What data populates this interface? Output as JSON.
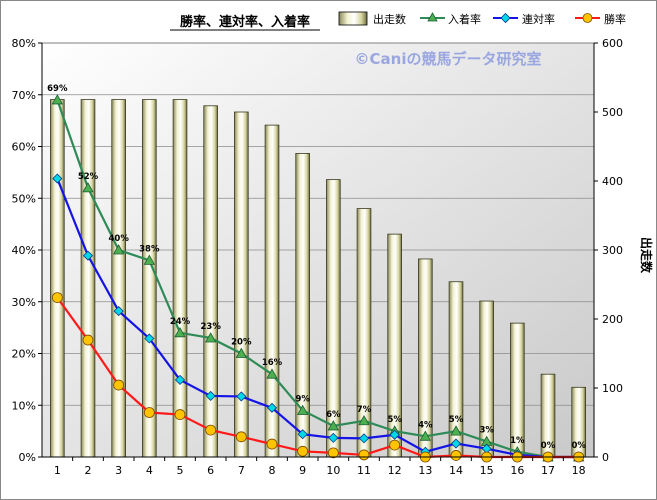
{
  "chart_data": {
    "type": "bar+line",
    "title": "勝率、連対率、入着率",
    "watermark": "©Caniの競馬データ研究室",
    "categories": [
      "1",
      "2",
      "3",
      "4",
      "5",
      "6",
      "7",
      "8",
      "9",
      "10",
      "11",
      "12",
      "13",
      "14",
      "15",
      "16",
      "17",
      "18"
    ],
    "y_left": {
      "min": 0,
      "max": 80,
      "step": 10,
      "unit": "%",
      "tick_labels": [
        "0%",
        "10%",
        "20%",
        "30%",
        "40%",
        "50%",
        "60%",
        "70%",
        "80%"
      ]
    },
    "y_right": {
      "min": 0,
      "max": 600,
      "step": 100,
      "label": "出走数",
      "tick_labels": [
        "0",
        "100",
        "200",
        "300",
        "400",
        "500",
        "600"
      ]
    },
    "grid": true,
    "legend_position": "top-right",
    "series": [
      {
        "name": "出走数",
        "kind": "bar",
        "axis": "right",
        "color": "#e8e6b0",
        "values": [
          518,
          518,
          518,
          518,
          518,
          509,
          500,
          481,
          440,
          402,
          360,
          323,
          287,
          254,
          226,
          194,
          120,
          101
        ]
      },
      {
        "name": "入着率",
        "kind": "line",
        "axis": "left",
        "color": "#2e8b57",
        "marker_fill": "#4caf50",
        "values": [
          69,
          52,
          40,
          38,
          24,
          23,
          20,
          16,
          9,
          6,
          7,
          5,
          4,
          5,
          3,
          1,
          0,
          0
        ],
        "data_labels": [
          "69%",
          "52%",
          "40%",
          "38%",
          "24%",
          "23%",
          "20%",
          "16%",
          "9%",
          "6%",
          "7%",
          "5%",
          "4%",
          "5%",
          "3%",
          "1%",
          "0%",
          "0%"
        ]
      },
      {
        "name": "連対率",
        "kind": "line",
        "axis": "left",
        "color": "#1414e6",
        "marker_fill": "#00d8e8",
        "values": [
          53.8,
          38.9,
          28.2,
          22.9,
          14.9,
          11.8,
          11.7,
          9.5,
          4.4,
          3.7,
          3.6,
          4.3,
          1.0,
          2.6,
          1.6,
          0.4,
          0,
          0
        ]
      },
      {
        "name": "勝率",
        "kind": "line",
        "axis": "left",
        "color": "#ff1a1a",
        "marker_fill": "#ffc400",
        "values": [
          30.8,
          22.6,
          13.9,
          8.6,
          8.2,
          5.2,
          3.9,
          2.5,
          1.1,
          0.8,
          0.4,
          2.3,
          0,
          0.3,
          0,
          0,
          0,
          0
        ]
      }
    ]
  }
}
